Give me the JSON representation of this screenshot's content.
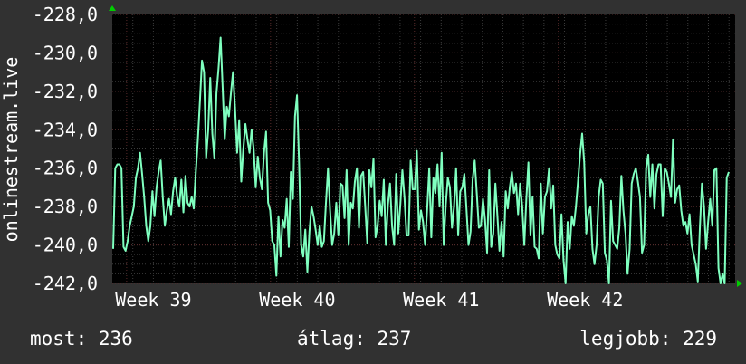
{
  "chart_data": {
    "type": "line",
    "ylabel": "onlinestream.live",
    "ylim": [
      -242.0,
      -228.0
    ],
    "yticks": [
      "-228,0",
      "-230,0",
      "-232,0",
      "-234,0",
      "-236,0",
      "-238,0",
      "-240,0",
      "-242,0"
    ],
    "yticks_values": [
      -228,
      -230,
      -232,
      -234,
      -236,
      -238,
      -240,
      -242
    ],
    "xticks": [
      "Week 39",
      "Week 40",
      "Week 41",
      "Week 42"
    ],
    "xticks_positions": [
      2,
      9,
      16,
      23
    ],
    "xlim": [
      0,
      30.3
    ],
    "grid": true,
    "series": [
      {
        "color": "#7fffbf",
        "values": [
          -240.2,
          -236.0,
          -235.8,
          -235.8,
          -236.0,
          -240.1,
          -240.3,
          -239.8,
          -239.0,
          -238.5,
          -238.0,
          -236.5,
          -236.0,
          -235.2,
          -236.3,
          -237.5,
          -239.0,
          -239.8,
          -239.0,
          -237.2,
          -238.5,
          -237.0,
          -236.2,
          -235.6,
          -237.5,
          -239.0,
          -238.2,
          -237.6,
          -238.4,
          -237.2,
          -236.5,
          -237.5,
          -238.0,
          -236.6,
          -238.3,
          -236.4,
          -237.8,
          -238.0,
          -237.5,
          -238.1,
          -236.2,
          -234.5,
          -232.5,
          -230.4,
          -231.0,
          -235.5,
          -234.0,
          -231.3,
          -234.2,
          -235.5,
          -232.1,
          -230.8,
          -229.2,
          -231.8,
          -234.5,
          -232.8,
          -233.3,
          -232.1,
          -231.0,
          -232.9,
          -235.2,
          -233.5,
          -236.7,
          -235.0,
          -233.7,
          -234.5,
          -235.2,
          -234.0,
          -235.0,
          -237.0,
          -235.4,
          -236.5,
          -237.1,
          -235.2,
          -234.1,
          -237.8,
          -238.2,
          -239.8,
          -240.0,
          -241.6,
          -238.5,
          -240.6,
          -238.7,
          -239.1,
          -237.6,
          -240.1,
          -236.2,
          -237.6,
          -233.3,
          -232.2,
          -235.8,
          -240.0,
          -240.6,
          -239.2,
          -241.4,
          -239.3,
          -238.0,
          -238.5,
          -239.2,
          -240.0,
          -239.0,
          -240.1,
          -239.8,
          -237.8,
          -236.0,
          -238.2,
          -240.0,
          -239.4,
          -237.8,
          -239.5,
          -236.8,
          -236.9,
          -238.6,
          -236.1,
          -240.0,
          -237.8,
          -238.1,
          -236.7,
          -236.0,
          -239.1,
          -236.4,
          -236.2,
          -238.0,
          -239.9,
          -236.1,
          -237.0,
          -235.5,
          -239.6,
          -239.0,
          -237.7,
          -238.5,
          -236.6,
          -240.0,
          -237.9,
          -236.8,
          -239.0,
          -240.0,
          -236.3,
          -239.4,
          -237.9,
          -236.1,
          -237.5,
          -239.5,
          -239.5,
          -235.6,
          -237.1,
          -237.1,
          -235.1,
          -239.2,
          -238.2,
          -238.8,
          -240.0,
          -238.1,
          -236.0,
          -239.6,
          -236.5,
          -237.3,
          -235.8,
          -238.0,
          -235.2,
          -240.0,
          -237.9,
          -236.5,
          -237.0,
          -239.1,
          -238.0,
          -236.0,
          -239.5,
          -237.2,
          -237.0,
          -236.3,
          -238.1,
          -240.0,
          -239.3,
          -236.6,
          -235.6,
          -237.3,
          -239.1,
          -239.0,
          -237.6,
          -238.7,
          -240.4,
          -236.1,
          -240.1,
          -239.4,
          -236.8,
          -238.5,
          -240.3,
          -238.8,
          -240.6,
          -237.2,
          -238.1,
          -237.0,
          -236.2,
          -237.3,
          -236.8,
          -238.4,
          -236.8,
          -238.0,
          -240.0,
          -237.6,
          -235.7,
          -239.5,
          -237.5,
          -240.1,
          -240.2,
          -240.7,
          -236.8,
          -239.4,
          -237.5,
          -237.2,
          -236.0,
          -238.1,
          -236.9,
          -240.0,
          -240.5,
          -240.7,
          -238.4,
          -240.8,
          -242.0,
          -238.8,
          -240.2,
          -238.5,
          -239.0,
          -238.0,
          -236.7,
          -235.3,
          -234.2,
          -235.7,
          -239.4,
          -238.4,
          -238.0,
          -240.2,
          -241.0,
          -240.0,
          -237.5,
          -236.6,
          -236.8,
          -240.4,
          -240.8,
          -242.0,
          -237.7,
          -239.8,
          -240.0,
          -240.2,
          -239.1,
          -236.4,
          -238.2,
          -239.4,
          -241.5,
          -240.2,
          -236.8,
          -236.3,
          -236.0,
          -236.7,
          -237.5,
          -240.4,
          -240.0,
          -236.0,
          -235.3,
          -237.5,
          -235.8,
          -238.1,
          -236.3,
          -235.8,
          -235.8,
          -238.5,
          -236.0,
          -236.2,
          -236.8,
          -237.5,
          -234.5,
          -237.8,
          -237.1,
          -236.9,
          -238.2,
          -239.0,
          -238.8,
          -239.4,
          -238.4,
          -240.0,
          -240.5,
          -241.0,
          -241.9,
          -239.1,
          -236.8,
          -238.0,
          -240.2,
          -238.8,
          -237.6,
          -239.0,
          -236.1,
          -236.0,
          -241.2,
          -242.0,
          -241.5,
          -242.0,
          -236.5,
          -236.2
        ]
      }
    ]
  },
  "stats": {
    "now": "most: 236",
    "avg": "átlag: 237",
    "best": "legjobb: 229"
  },
  "colors": {
    "background": "#313131",
    "plot_background": "#000000",
    "major_grid": "#5a2a2a",
    "minor_grid": "#3c3c3c",
    "line": "#7fffbf",
    "text": "#ffffff",
    "arrow": "#00cc00"
  }
}
